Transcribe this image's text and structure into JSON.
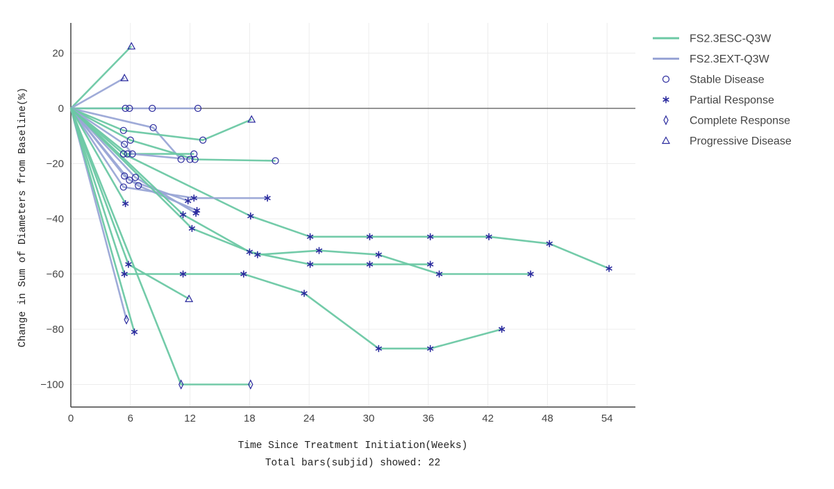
{
  "chart_data": {
    "type": "line",
    "xlabel": "Time Since Treatment Initiation(Weeks)",
    "xlabel_sub": "Total bars(subjid) showed: 22",
    "ylabel": "Change in Sum of Diameters from Baseline(%)",
    "xlim": [
      0,
      58
    ],
    "ylim": [
      -108,
      31
    ],
    "x_ticks": [
      0,
      6,
      12,
      18,
      24,
      30,
      36,
      42,
      48,
      54
    ],
    "y_ticks": [
      20,
      0,
      -20,
      -40,
      -60,
      -80,
      -100
    ],
    "x_tick_labels": [
      "0",
      "6",
      "12",
      "18",
      "24",
      "30",
      "36",
      "42",
      "48",
      "54"
    ],
    "y_tick_labels": [
      "20",
      "0",
      "−20",
      "−40",
      "−60",
      "−80",
      "−100"
    ],
    "grid": true,
    "legend_position": "top-right",
    "colors": {
      "FS2.3ESC-Q3W": "#6cc8a4",
      "FS2.3EXT-Q3W": "#9aa6d6",
      "marker": "#2b2b9e"
    },
    "legend": [
      {
        "label": "FS2.3ESC-Q3W",
        "kind": "line",
        "cohort": "FS2.3ESC-Q3W"
      },
      {
        "label": "FS2.3EXT-Q3W",
        "kind": "line",
        "cohort": "FS2.3EXT-Q3W"
      },
      {
        "label": "Stable Disease",
        "kind": "marker",
        "symbol": "circle"
      },
      {
        "label": "Partial Response",
        "kind": "marker",
        "symbol": "asterisk"
      },
      {
        "label": "Complete Response",
        "kind": "marker",
        "symbol": "diamond"
      },
      {
        "label": "Progressive Disease",
        "kind": "marker",
        "symbol": "triangle"
      }
    ],
    "series": [
      {
        "cohort": "FS2.3ESC-Q3W",
        "points": [
          [
            0,
            0,
            ""
          ],
          [
            6.1,
            22.5,
            "PD"
          ]
        ]
      },
      {
        "cohort": "FS2.3EXT-Q3W",
        "points": [
          [
            0,
            0,
            ""
          ],
          [
            5.4,
            11,
            "PD"
          ]
        ]
      },
      {
        "cohort": "FS2.3EXT-Q3W",
        "points": [
          [
            0,
            0,
            ""
          ],
          [
            5.5,
            0,
            "SD"
          ],
          [
            8.2,
            0,
            "SD"
          ],
          [
            12.8,
            0,
            "SD"
          ]
        ]
      },
      {
        "cohort": "FS2.3ESC-Q3W",
        "points": [
          [
            0,
            0,
            ""
          ],
          [
            5.9,
            0,
            "SD"
          ]
        ]
      },
      {
        "cohort": "FS2.3EXT-Q3W",
        "points": [
          [
            0,
            0,
            ""
          ],
          [
            8.3,
            -7,
            "SD"
          ],
          [
            11.1,
            -18.5,
            "SD"
          ]
        ]
      },
      {
        "cohort": "FS2.3ESC-Q3W",
        "points": [
          [
            0,
            0,
            ""
          ],
          [
            5.3,
            -8,
            "SD"
          ],
          [
            13.3,
            -11.5,
            "SD"
          ],
          [
            18.2,
            -4,
            "PD"
          ]
        ]
      },
      {
        "cohort": "FS2.3ESC-Q3W",
        "points": [
          [
            0,
            0,
            ""
          ],
          [
            6.0,
            -11.5,
            "SD"
          ],
          [
            12.5,
            -18.5,
            "SD"
          ],
          [
            20.6,
            -19,
            "SD"
          ]
        ]
      },
      {
        "cohort": "FS2.3ESC-Q3W",
        "points": [
          [
            0,
            0,
            ""
          ],
          [
            5.7,
            -16.5,
            "SD"
          ],
          [
            12.4,
            -16.5,
            "SD"
          ]
        ]
      },
      {
        "cohort": "FS2.3EXT-Q3W",
        "points": [
          [
            0,
            0,
            ""
          ],
          [
            5.4,
            -13,
            "SD"
          ],
          [
            6.2,
            -16.5,
            "SD"
          ],
          [
            12.0,
            -18.5,
            "SD"
          ]
        ]
      },
      {
        "cohort": "FS2.3ESC-Q3W",
        "points": [
          [
            0,
            0,
            ""
          ],
          [
            5.3,
            -16.5,
            "SD"
          ],
          [
            18.1,
            -39,
            "PR"
          ],
          [
            24.1,
            -46.5,
            "PR"
          ],
          [
            30.1,
            -46.5,
            "PR"
          ],
          [
            36.2,
            -46.5,
            "PR"
          ],
          [
            42.1,
            -46.5,
            "PR"
          ],
          [
            48.2,
            -49,
            "PR"
          ],
          [
            54.2,
            -58,
            "PR"
          ]
        ]
      },
      {
        "cohort": "FS2.3EXT-Q3W",
        "points": [
          [
            0,
            0,
            ""
          ],
          [
            5.4,
            -24.5,
            "SD"
          ],
          [
            6.8,
            -28,
            "SD"
          ],
          [
            12.7,
            -37,
            "PR"
          ]
        ]
      },
      {
        "cohort": "FS2.3EXT-Q3W",
        "points": [
          [
            0,
            0,
            ""
          ],
          [
            5.9,
            -26,
            "SD"
          ],
          [
            11.8,
            -33.5,
            "PR"
          ]
        ]
      },
      {
        "cohort": "FS2.3EXT-Q3W",
        "points": [
          [
            0,
            0,
            ""
          ],
          [
            6.5,
            -25,
            "SD"
          ],
          [
            12.6,
            -38,
            "PR"
          ]
        ]
      },
      {
        "cohort": "FS2.3EXT-Q3W",
        "points": [
          [
            0,
            0,
            ""
          ],
          [
            5.3,
            -28.5,
            "SD"
          ],
          [
            12.4,
            -32.5,
            "PR"
          ],
          [
            19.8,
            -32.5,
            "PR"
          ]
        ]
      },
      {
        "cohort": "FS2.3ESC-Q3W",
        "points": [
          [
            0,
            0,
            ""
          ],
          [
            5.5,
            -34.5,
            "PR"
          ]
        ]
      },
      {
        "cohort": "FS2.3ESC-Q3W",
        "points": [
          [
            0,
            0,
            ""
          ],
          [
            11.3,
            -38.5,
            "PR"
          ],
          [
            18.0,
            -52,
            "PR"
          ],
          [
            24.1,
            -56.5,
            "PR"
          ],
          [
            30.1,
            -56.5,
            "PR"
          ],
          [
            36.2,
            -56.5,
            "PR"
          ]
        ]
      },
      {
        "cohort": "FS2.3ESC-Q3W",
        "points": [
          [
            0,
            0,
            ""
          ],
          [
            12.2,
            -43.5,
            "PR"
          ],
          [
            18.8,
            -53,
            "PR"
          ],
          [
            25.0,
            -51.5,
            "PR"
          ],
          [
            31.0,
            -53,
            "PR"
          ],
          [
            37.1,
            -60,
            "PR"
          ],
          [
            46.3,
            -60,
            "PR"
          ]
        ]
      },
      {
        "cohort": "FS2.3ESC-Q3W",
        "points": [
          [
            0,
            0,
            ""
          ],
          [
            5.8,
            -56.5,
            "PR"
          ],
          [
            11.9,
            -69,
            "PD"
          ]
        ]
      },
      {
        "cohort": "FS2.3ESC-Q3W",
        "points": [
          [
            0,
            0,
            ""
          ],
          [
            5.4,
            -60,
            "PR"
          ],
          [
            11.3,
            -60,
            "PR"
          ],
          [
            17.4,
            -60,
            "PR"
          ],
          [
            23.5,
            -67,
            "PR"
          ],
          [
            31.0,
            -87,
            "PR"
          ],
          [
            36.2,
            -87,
            "PR"
          ],
          [
            43.4,
            -80,
            "PR"
          ]
        ]
      },
      {
        "cohort": "FS2.3EXT-Q3W",
        "points": [
          [
            0,
            0,
            ""
          ],
          [
            5.6,
            -76.5,
            "CR"
          ]
        ]
      },
      {
        "cohort": "FS2.3ESC-Q3W",
        "points": [
          [
            0,
            0,
            ""
          ],
          [
            6.4,
            -81,
            "PR"
          ]
        ]
      },
      {
        "cohort": "FS2.3ESC-Q3W",
        "points": [
          [
            0,
            0,
            ""
          ],
          [
            11.1,
            -100,
            "CR"
          ],
          [
            18.1,
            -100,
            "CR"
          ]
        ]
      }
    ]
  }
}
